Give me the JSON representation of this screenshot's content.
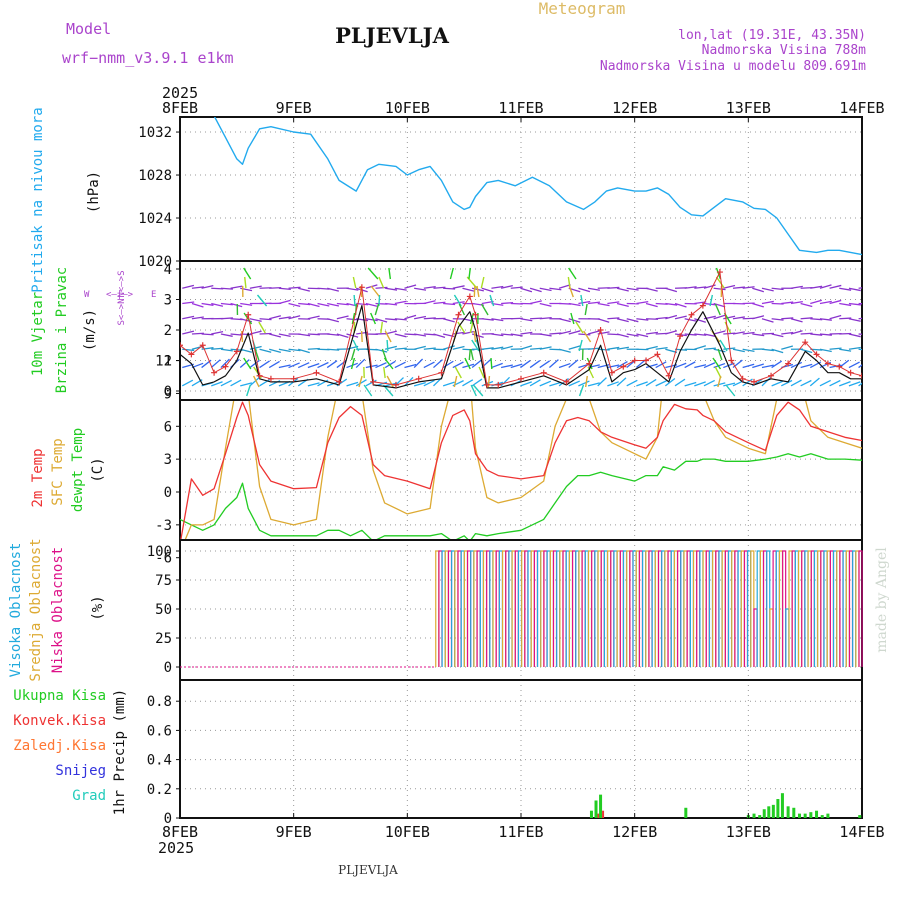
{
  "header": {
    "model_label": "Model",
    "model_name": "wrf−nmm_v3.9.1  e1km",
    "station_title": "PLJEVLJA",
    "product_title": "Meteogram",
    "lonlat": "lon,lat (19.31E, 43.35N)",
    "elevation": "Nadmorska Visina 788m",
    "model_elevation": "Nadmorska Visina u modelu 809.691m"
  },
  "footer": {
    "station_label": "PLJEVLJA"
  },
  "watermark": "made by Angel",
  "colors": {
    "pressure": "#22aaee",
    "temp2m": "#ee3333",
    "sfc_temp": "#ddaa33",
    "dewpoint": "#22cc22",
    "wind_max": "#dd3333",
    "wind_mean": "#111111",
    "high_cloud": "#22aadd",
    "mid_cloud": "#ddaa33",
    "low_cloud": "#dd1188",
    "total_precip": "#22cc22",
    "conv_precip": "#ee3333",
    "title_purple": "#aa44cc"
  },
  "time_axis": {
    "year": "2025",
    "ticks": [
      "8FEB",
      "9FEB",
      "10FEB",
      "11FEB",
      "12FEB",
      "13FEB",
      "14FEB"
    ]
  },
  "panels": {
    "pressure": {
      "label_main": "Pritisak na nivou mora",
      "unit": "(hPa)"
    },
    "wind": {
      "label_line1": "10m Vjetar",
      "label_line2": "Brzina i Pravac",
      "unit": "(m/s)",
      "compass_w": "W",
      "compass_e": "E",
      "compass_n": "N<—>S",
      "compass_s": "S<—>N"
    },
    "temp": {
      "label_2m": "2m Temp",
      "label_sfc": "SFC Temp",
      "label_dew": "dewpt Temp",
      "unit": "(C)"
    },
    "cloud": {
      "label_high": "Visoka Oblacnost",
      "label_mid": "Srednja Oblacnost",
      "label_low": "Niska Oblacnost",
      "unit": "(%)"
    },
    "precip": {
      "legend_total": "Ukupna Kisa",
      "legend_conv": "Konvek.Kisa",
      "legend_strat": "Zaledj.Kisa",
      "legend_snow": "Snijeg",
      "legend_grad": "Grad",
      "axis_label": "1hr Precip (mm)"
    }
  },
  "chart_data": [
    {
      "type": "line",
      "title": "Pritisak na nivou mora",
      "ylabel": "(hPa)",
      "ylim": [
        1020,
        1033.4
      ],
      "yticks": [
        1020,
        1024,
        1028,
        1032
      ],
      "x": [
        0,
        0.1,
        0.2,
        0.3,
        0.4,
        0.5,
        0.55,
        0.6,
        0.7,
        0.8,
        1.0,
        1.15,
        1.3,
        1.4,
        1.55,
        1.65,
        1.75,
        1.9,
        2.0,
        2.1,
        2.2,
        2.3,
        2.4,
        2.5,
        2.55,
        2.6,
        2.7,
        2.8,
        2.95,
        3.1,
        3.25,
        3.4,
        3.55,
        3.65,
        3.75,
        3.85,
        4.0,
        4.1,
        4.2,
        4.3,
        4.4,
        4.5,
        4.6,
        4.7,
        4.8,
        4.95,
        5.05,
        5.15,
        5.25,
        5.35,
        5.45,
        5.6,
        5.7,
        5.8,
        5.9,
        6.0
      ],
      "series": [
        {
          "name": "Pritisak na nivou mora",
          "values": [
            1033.5,
            1033.7,
            1034.2,
            1033.5,
            1031.5,
            1029.5,
            1029.0,
            1030.5,
            1032.3,
            1032.5,
            1032.0,
            1031.8,
            1029.5,
            1027.5,
            1026.5,
            1028.5,
            1029.0,
            1028.8,
            1028.0,
            1028.5,
            1028.8,
            1027.5,
            1025.5,
            1024.8,
            1025.0,
            1026.0,
            1027.3,
            1027.5,
            1027.0,
            1027.8,
            1027.0,
            1025.5,
            1024.8,
            1025.5,
            1026.5,
            1026.8,
            1026.5,
            1026.5,
            1026.8,
            1026.2,
            1025.0,
            1024.3,
            1024.2,
            1025.0,
            1025.8,
            1025.5,
            1024.9,
            1024.8,
            1024.0,
            1022.5,
            1021.0,
            1020.8,
            1021.0,
            1021.0,
            1020.8,
            1020.6
          ]
        }
      ]
    },
    {
      "type": "line",
      "title": "10m Vjetar Brzina i Pravac",
      "ylabel": "(m/s)",
      "ylim": [
        0,
        4.2
      ],
      "yticks": [
        0,
        1,
        2,
        3,
        4
      ],
      "x": [
        0,
        0.1,
        0.2,
        0.3,
        0.4,
        0.5,
        0.6,
        0.7,
        0.8,
        1.0,
        1.2,
        1.4,
        1.6,
        1.7,
        1.9,
        2.1,
        2.3,
        2.45,
        2.55,
        2.6,
        2.7,
        2.8,
        3.0,
        3.2,
        3.4,
        3.6,
        3.7,
        3.8,
        3.9,
        4.0,
        4.1,
        4.2,
        4.3,
        4.4,
        4.5,
        4.6,
        4.75,
        4.85,
        4.95,
        5.05,
        5.2,
        5.35,
        5.5,
        5.6,
        5.7,
        5.8,
        5.9,
        6.0
      ],
      "series": [
        {
          "name": "max",
          "values": [
            1.5,
            1.2,
            1.5,
            0.6,
            0.8,
            1.3,
            2.5,
            0.5,
            0.4,
            0.4,
            0.6,
            0.3,
            3.4,
            0.3,
            0.2,
            0.4,
            0.6,
            2.5,
            3.1,
            2.5,
            0.2,
            0.2,
            0.4,
            0.6,
            0.3,
            0.9,
            2.0,
            0.6,
            0.8,
            1.0,
            1.0,
            1.2,
            0.5,
            1.8,
            2.5,
            2.8,
            3.9,
            1.0,
            0.4,
            0.3,
            0.5,
            0.9,
            1.6,
            1.2,
            0.9,
            0.8,
            0.6,
            0.5
          ]
        },
        {
          "name": "mean",
          "values": [
            1.2,
            0.9,
            0.2,
            0.3,
            0.5,
            1.0,
            1.9,
            0.4,
            0.3,
            0.3,
            0.4,
            0.2,
            2.8,
            0.2,
            0.1,
            0.3,
            0.4,
            2.1,
            2.6,
            2.0,
            0.1,
            0.1,
            0.3,
            0.5,
            0.2,
            0.7,
            1.5,
            0.3,
            0.6,
            0.7,
            0.9,
            0.6,
            0.3,
            1.3,
            2.0,
            2.6,
            1.5,
            0.6,
            0.3,
            0.2,
            0.4,
            0.3,
            1.3,
            1.0,
            0.6,
            0.6,
            0.4,
            0.4
          ]
        }
      ]
    },
    {
      "type": "line",
      "title": "2m Temp / SFC Temp / dewpt Temp",
      "ylabel": "(C)",
      "ylim": [
        -6,
        12
      ],
      "yticks": [
        -6,
        -3,
        0,
        3,
        6,
        9,
        12
      ],
      "x": [
        0,
        0.1,
        0.2,
        0.3,
        0.4,
        0.5,
        0.55,
        0.6,
        0.7,
        0.8,
        1.0,
        1.2,
        1.3,
        1.4,
        1.5,
        1.6,
        1.7,
        1.8,
        2.0,
        2.2,
        2.3,
        2.4,
        2.5,
        2.55,
        2.6,
        2.7,
        2.8,
        3.0,
        3.2,
        3.3,
        3.4,
        3.5,
        3.6,
        3.7,
        3.8,
        4.0,
        4.1,
        4.2,
        4.25,
        4.35,
        4.45,
        4.55,
        4.6,
        4.7,
        4.8,
        5.0,
        5.15,
        5.25,
        5.35,
        5.45,
        5.55,
        5.7,
        5.85,
        6.0
      ],
      "series": [
        {
          "name": "2m Temp",
          "values": [
            -4.8,
            1.2,
            -0.3,
            0.3,
            3.5,
            6.8,
            8.2,
            7.0,
            2.5,
            1.0,
            0.3,
            0.4,
            4.5,
            6.8,
            7.8,
            7.0,
            2.5,
            1.5,
            1.0,
            0.3,
            4.5,
            7.0,
            7.5,
            6.5,
            3.5,
            2.0,
            1.5,
            1.2,
            1.5,
            4.5,
            6.5,
            6.8,
            6.5,
            5.5,
            5.0,
            4.3,
            4.0,
            5.0,
            6.5,
            8.0,
            7.6,
            7.5,
            7.0,
            6.5,
            5.5,
            4.5,
            3.8,
            7.0,
            8.2,
            7.5,
            6.0,
            5.5,
            5.0,
            4.7
          ]
        },
        {
          "name": "SFC Temp",
          "values": [
            -5.5,
            -3.0,
            -3.0,
            -2.5,
            4.0,
            10.0,
            10.8,
            9.0,
            0.5,
            -2.5,
            -3.0,
            -2.5,
            5.0,
            10.0,
            10.5,
            9.0,
            2.0,
            -1.0,
            -2.0,
            -1.5,
            6.0,
            10.0,
            10.8,
            10.5,
            4.0,
            -0.5,
            -1.0,
            -0.5,
            1.0,
            6.0,
            8.5,
            9.0,
            8.5,
            5.5,
            4.5,
            3.5,
            3.0,
            5.0,
            10.0,
            11.5,
            11.0,
            11.0,
            9.0,
            6.5,
            5.0,
            4.0,
            3.5,
            8.5,
            11.2,
            10.5,
            6.5,
            5.0,
            4.5,
            4.0
          ]
        },
        {
          "name": "dewpt Temp",
          "values": [
            -2.5,
            -3.0,
            -3.5,
            -3.0,
            -1.5,
            -0.5,
            0.8,
            -1.5,
            -3.5,
            -4.0,
            -4.0,
            -4.0,
            -3.5,
            -3.5,
            -4.0,
            -3.5,
            -4.5,
            -4.0,
            -4.0,
            -4.0,
            -3.8,
            -4.5,
            -4.0,
            -4.5,
            -3.8,
            -4.0,
            -3.8,
            -3.5,
            -2.5,
            -1.0,
            0.5,
            1.5,
            1.5,
            1.8,
            1.5,
            1.0,
            1.5,
            1.5,
            2.3,
            2.0,
            2.8,
            2.8,
            3.0,
            3.0,
            2.8,
            2.8,
            3.0,
            3.2,
            3.5,
            3.2,
            3.5,
            3.0,
            3.0,
            2.9
          ]
        }
      ]
    },
    {
      "type": "bar",
      "title": "Oblacnost",
      "ylabel": "(%)",
      "ylim": [
        0,
        100
      ],
      "yticks": [
        0,
        25,
        50,
        75,
        100
      ],
      "note": "cloud cover 0% until about 10.25 FEB, then mostly alternating 0/100% through 14FEB"
    },
    {
      "type": "bar",
      "title": "1hr Precip",
      "ylabel": "1hr Precip (mm)",
      "ylim": [
        0,
        1.0
      ],
      "yticks": [
        0,
        0.2,
        0.4,
        0.6,
        0.8
      ],
      "x": [
        3.62,
        3.66,
        3.7,
        4.45,
        5.0,
        5.05,
        5.1,
        5.14,
        5.18,
        5.22,
        5.26,
        5.3,
        5.35,
        5.4,
        5.45,
        5.5,
        5.55,
        5.6,
        5.65,
        5.7,
        5.98
      ],
      "series": [
        {
          "name": "Ukupna Kisa",
          "values": [
            0.05,
            0.12,
            0.16,
            0.07,
            0.02,
            0.03,
            0.02,
            0.06,
            0.08,
            0.09,
            0.13,
            0.17,
            0.08,
            0.07,
            0.03,
            0.03,
            0.04,
            0.05,
            0.02,
            0.03,
            0.02
          ]
        },
        {
          "name": "Konvek.Kisa",
          "values": [
            0.0,
            0.03,
            0.05,
            0.0,
            0.0,
            0.0,
            0.0,
            0.0,
            0.0,
            0.0,
            0.0,
            0.0,
            0.0,
            0.0,
            0.0,
            0.0,
            0.0,
            0.0,
            0.0,
            0.0,
            0.0
          ]
        }
      ]
    }
  ]
}
